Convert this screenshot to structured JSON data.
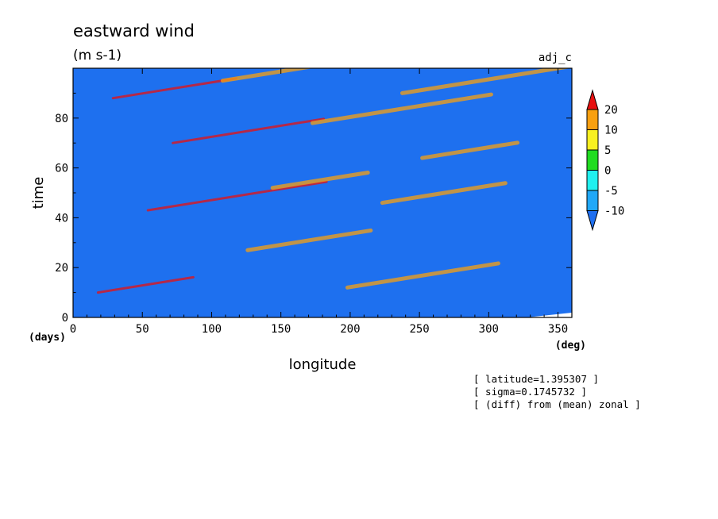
{
  "chart_data": {
    "type": "heatmap",
    "title": "eastward wind",
    "units": "(m s-1)",
    "run_label": "adj_c",
    "xlabel": "longitude",
    "ylabel": "time",
    "x_unit": "(deg)",
    "y_unit": "(days)",
    "xlim": [
      0,
      360
    ],
    "ylim": [
      0,
      100
    ],
    "x_ticks": [
      0,
      50,
      100,
      150,
      200,
      250,
      300,
      350
    ],
    "y_ticks": [
      0,
      20,
      40,
      60,
      80
    ],
    "legend": {
      "placement": "right",
      "levels": [
        -10,
        -5,
        0,
        5,
        10,
        20
      ],
      "colors": [
        "#1f6ff0",
        "#20a8f8",
        "#20f0f0",
        "#20dc20",
        "#f8f020",
        "#f8a010",
        "#e81010"
      ]
    },
    "annotations": [
      "[ latitude=1.395307 ]",
      "[ sigma=0.1745732 ]",
      "[ (diff) from (mean) zonal ]"
    ]
  }
}
